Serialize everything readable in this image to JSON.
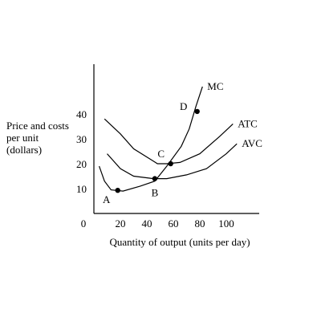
{
  "chart_data": {
    "type": "line",
    "title": "",
    "ylabel_lines": [
      "Price and costs",
      "per unit",
      "(dollars)"
    ],
    "xlabel": "Quantity of output (units per day)",
    "origin_label": "0",
    "xlim": [
      0,
      120
    ],
    "ylim": [
      0,
      55
    ],
    "x_ticks": [
      20,
      40,
      60,
      80,
      100
    ],
    "y_ticks": [
      10,
      20,
      30,
      40
    ],
    "series": [
      {
        "name": "MC",
        "points": [
          [
            4,
            19
          ],
          [
            8,
            13
          ],
          [
            13,
            9.5
          ],
          [
            22,
            9
          ],
          [
            35,
            11
          ],
          [
            46,
            13
          ],
          [
            55,
            19
          ],
          [
            66,
            27
          ],
          [
            72,
            34
          ],
          [
            77,
            43
          ],
          [
            82,
            51
          ]
        ]
      },
      {
        "name": "ATC",
        "points": [
          [
            8,
            38
          ],
          [
            20,
            32
          ],
          [
            30,
            26
          ],
          [
            45,
            21
          ],
          [
            48,
            20
          ],
          [
            55,
            20
          ],
          [
            65,
            20.5
          ],
          [
            80,
            24
          ],
          [
            95,
            31
          ],
          [
            105,
            36
          ]
        ]
      },
      {
        "name": "AVC",
        "points": [
          [
            10,
            24
          ],
          [
            20,
            18
          ],
          [
            30,
            15
          ],
          [
            45,
            14
          ],
          [
            55,
            14
          ],
          [
            70,
            15.5
          ],
          [
            85,
            18
          ],
          [
            100,
            24
          ],
          [
            108,
            28
          ]
        ]
      }
    ],
    "points": [
      {
        "label": "A",
        "x": 18,
        "y": 9.3
      },
      {
        "label": "B",
        "x": 46,
        "y": 14
      },
      {
        "label": "C",
        "x": 58,
        "y": 20
      },
      {
        "label": "D",
        "x": 78,
        "y": 41
      }
    ]
  }
}
